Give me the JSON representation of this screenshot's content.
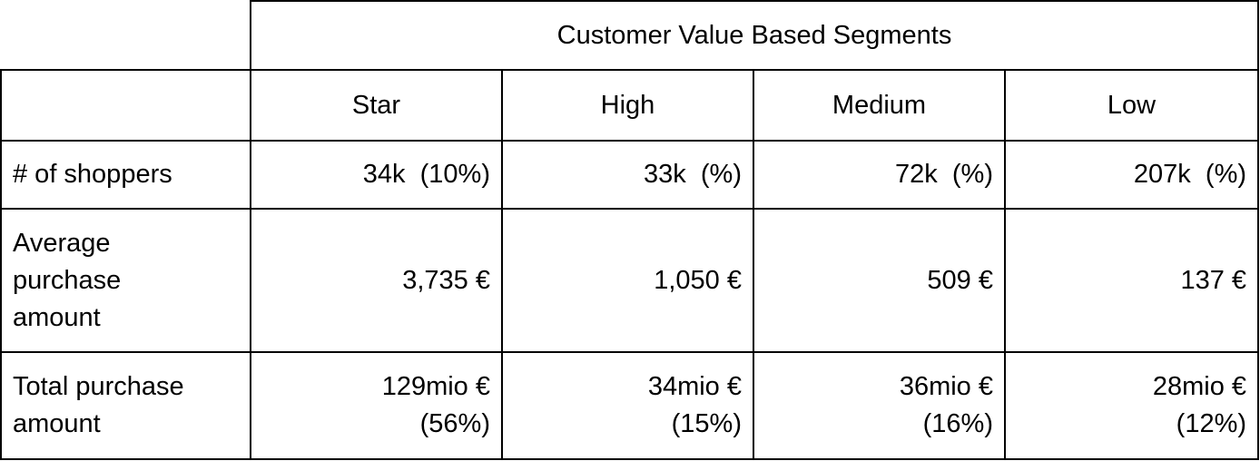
{
  "table": {
    "super_header": "Customer Value Based Segments",
    "segments": [
      "Star",
      "High",
      "Medium",
      "Low"
    ],
    "rows": [
      {
        "label": "# of shoppers",
        "values": [
          "34k  (10%)",
          "33k  (%)",
          "72k  (%)",
          "207k  (%)"
        ]
      },
      {
        "label_lines": [
          "Average",
          "purchase",
          "amount"
        ],
        "values": [
          "3,735 €",
          "1,050 €",
          "509 €",
          "137 €"
        ]
      },
      {
        "label_lines": [
          "Total purchase",
          "amount"
        ],
        "values": [
          [
            "129mio €",
            "(56%)"
          ],
          [
            "34mio €",
            "(15%)"
          ],
          [
            "36mio €",
            "(16%)"
          ],
          [
            "28mio €",
            "(12%)"
          ]
        ]
      }
    ]
  }
}
